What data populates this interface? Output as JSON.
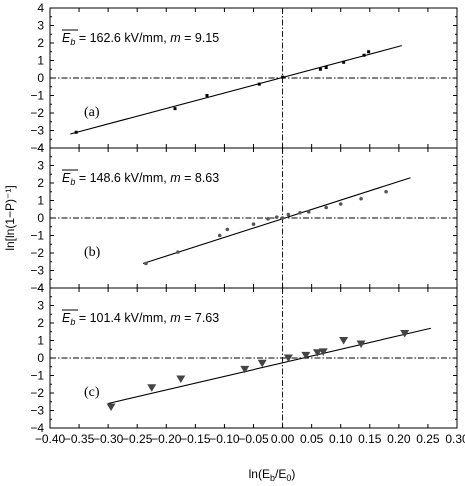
{
  "chart_data": {
    "type": "scatter",
    "xlabel_prefix": "ln(E",
    "xlabel_sub_b": "b",
    "xlabel_mid": "/E",
    "xlabel_sub_0": "0",
    "xlabel_suffix": ")",
    "ylabel": "ln[ln(1−P)⁻¹]",
    "xlim": [
      -0.4,
      0.3
    ],
    "x_ticks": [
      "−0.40",
      "−0.35",
      "−0.30",
      "−0.25",
      "−0.20",
      "−0.15",
      "−0.10",
      "−0.05",
      "0.00",
      "0.05",
      "0.10",
      "0.15",
      "0.20",
      "0.25",
      "0.30"
    ],
    "x_tick_values": [
      -0.4,
      -0.35,
      -0.3,
      -0.25,
      -0.2,
      -0.15,
      -0.1,
      -0.05,
      0.0,
      0.05,
      0.1,
      0.15,
      0.2,
      0.25,
      0.3
    ],
    "ylim": [
      -4,
      4
    ],
    "y_ticks": [
      "−4",
      "−3",
      "−2",
      "−1",
      "0",
      "1",
      "2",
      "3",
      "4"
    ],
    "y_tick_values": [
      -4,
      -3,
      -2,
      -1,
      0,
      1,
      2,
      3,
      4
    ],
    "reference_lines": {
      "x": 0,
      "y": 0
    },
    "panels": [
      {
        "label": "(a)",
        "eb_symbol": "E",
        "eb_sub": "b",
        "eb_text": " = 162.6 kV/mm, ",
        "m_symbol": "m",
        "m_text": " = 9.15",
        "marker": "square",
        "points": [
          [
            -0.355,
            -3.1
          ],
          [
            -0.185,
            -1.75
          ],
          [
            -0.13,
            -1.0
          ],
          [
            -0.04,
            -0.35
          ],
          [
            0.0,
            0.05
          ],
          [
            0.065,
            0.5
          ],
          [
            0.075,
            0.6
          ],
          [
            0.105,
            0.9
          ],
          [
            0.14,
            1.3
          ],
          [
            0.148,
            1.5
          ]
        ],
        "fit": [
          [
            -0.365,
            -3.2
          ],
          [
            0.205,
            1.85
          ]
        ]
      },
      {
        "label": "(b)",
        "eb_symbol": "E",
        "eb_sub": "b",
        "eb_text": " = 148.6 kV/mm, ",
        "m_symbol": "m",
        "m_text": " = 8.63",
        "marker": "circle",
        "points": [
          [
            -0.235,
            -2.6
          ],
          [
            -0.18,
            -1.95
          ],
          [
            -0.108,
            -1.0
          ],
          [
            -0.095,
            -0.65
          ],
          [
            -0.05,
            -0.35
          ],
          [
            -0.025,
            -0.05
          ],
          [
            -0.01,
            0.05
          ],
          [
            0.0,
            0.0
          ],
          [
            0.01,
            0.2
          ],
          [
            0.03,
            0.3
          ],
          [
            0.045,
            0.35
          ],
          [
            0.075,
            0.6
          ],
          [
            0.1,
            0.8
          ],
          [
            0.135,
            1.1
          ],
          [
            0.178,
            1.5
          ]
        ],
        "fit": [
          [
            -0.24,
            -2.6
          ],
          [
            0.22,
            2.3
          ]
        ]
      },
      {
        "label": "(c)",
        "eb_symbol": "E",
        "eb_sub": "b",
        "eb_text": " = 101.4 kV/mm, ",
        "m_symbol": "m",
        "m_text": " = 7.63",
        "marker": "triangle-down",
        "points": [
          [
            -0.295,
            -2.8
          ],
          [
            -0.225,
            -1.7
          ],
          [
            -0.175,
            -1.2
          ],
          [
            -0.065,
            -0.65
          ],
          [
            -0.035,
            -0.3
          ],
          [
            0.01,
            0.0
          ],
          [
            0.04,
            0.15
          ],
          [
            0.06,
            0.3
          ],
          [
            0.07,
            0.35
          ],
          [
            0.105,
            1.0
          ],
          [
            0.135,
            0.8
          ],
          [
            0.21,
            1.4
          ]
        ],
        "fit": [
          [
            -0.3,
            -2.6
          ],
          [
            0.255,
            1.7
          ]
        ]
      }
    ]
  }
}
